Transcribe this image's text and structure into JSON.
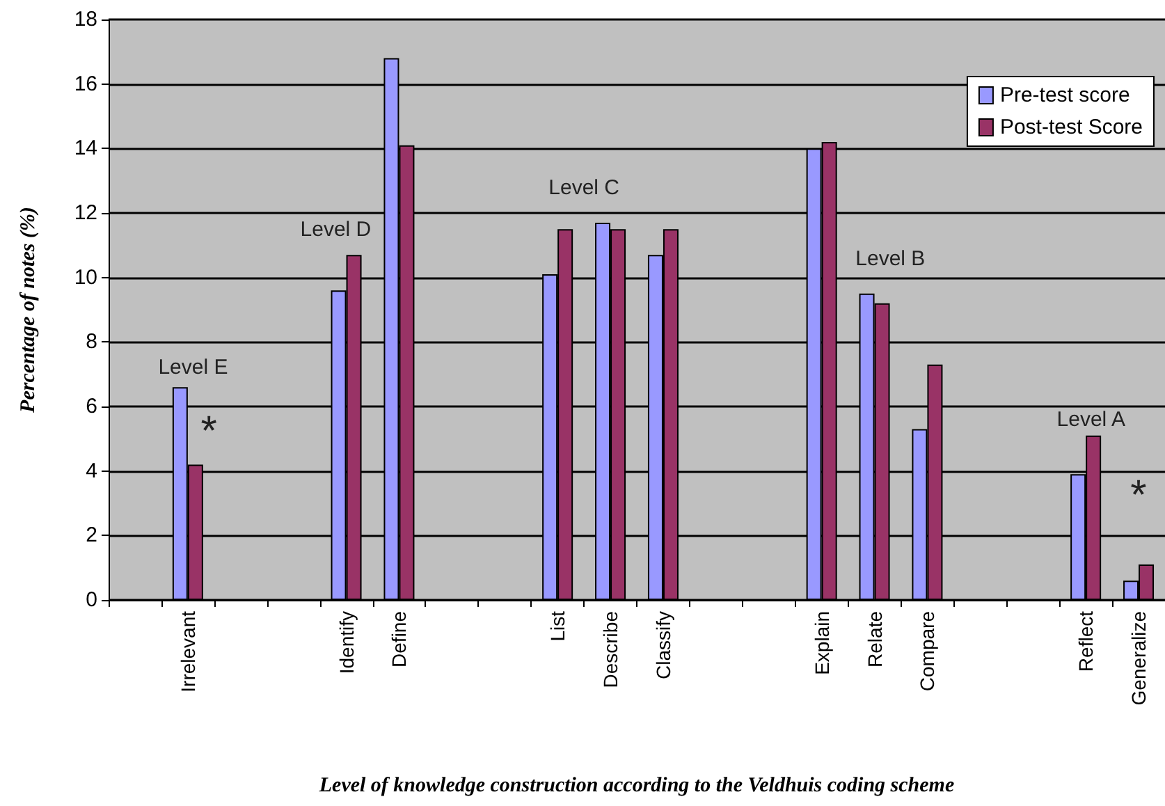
{
  "chart_data": {
    "type": "bar",
    "xlabel": "Level of knowledge construction according to the Veldhuis coding scheme",
    "ylabel": "Percentage of notes (%)",
    "categories": [
      null,
      "Irrelevant",
      null,
      null,
      "Identify",
      "Define",
      null,
      null,
      "List",
      "Describe",
      "Classify",
      null,
      null,
      "Explain",
      "Relate",
      "Compare",
      null,
      null,
      "Reflect",
      "Generalize"
    ],
    "series": [
      {
        "name": "Pre-test score",
        "color": "#9999ff",
        "values": [
          null,
          6.6,
          null,
          null,
          9.6,
          16.8,
          null,
          null,
          10.1,
          11.7,
          10.7,
          null,
          null,
          14.0,
          9.5,
          5.3,
          null,
          null,
          3.9,
          0.6
        ]
      },
      {
        "name": "Post-test Score",
        "color": "#993366",
        "values": [
          null,
          4.2,
          null,
          null,
          10.7,
          14.1,
          null,
          null,
          11.5,
          11.5,
          11.5,
          null,
          null,
          14.2,
          9.2,
          7.3,
          null,
          null,
          5.1,
          1.1
        ]
      }
    ],
    "ylim": [
      0,
      18
    ],
    "yticks": [
      0,
      2,
      4,
      6,
      8,
      10,
      12,
      14,
      16,
      18
    ],
    "grid": "y",
    "legend": "top right",
    "annotations": [
      "Level E",
      "*",
      "Level D",
      "Level C",
      "Level B",
      "Level A",
      "*"
    ]
  }
}
